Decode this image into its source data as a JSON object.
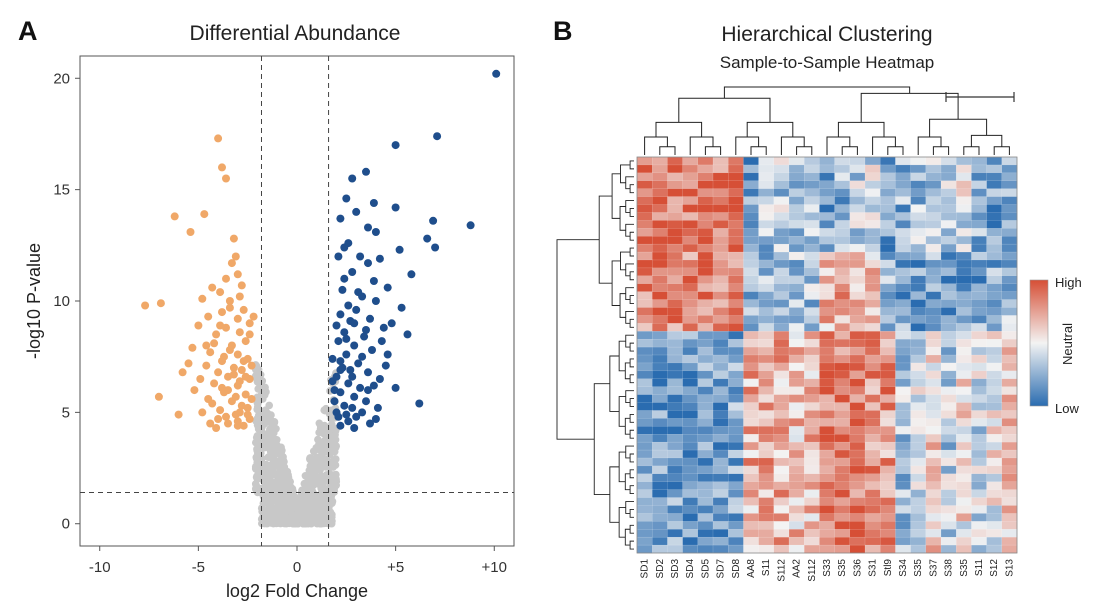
{
  "figure": {
    "panel_a_letter": "A",
    "panel_b_letter": "B"
  },
  "chart_data": [
    {
      "type": "scatter",
      "title": "Differential Abundance",
      "xlabel": "log2 Fold Change",
      "ylabel": "-log10 P-value",
      "xlim": [
        -11,
        11
      ],
      "ylim": [
        -1,
        21
      ],
      "xticks": [
        -10,
        -5,
        0,
        5,
        10
      ],
      "xtick_labels": [
        "-10",
        "-5",
        "0",
        "+5",
        "+10"
      ],
      "yticks": [
        0,
        5,
        10,
        15,
        20
      ],
      "ytick_labels": [
        "0",
        "5",
        "10",
        "15",
        "20"
      ],
      "thresholds": {
        "fold_change_low": -1.8,
        "fold_change_high": 1.6,
        "pvalue": 1.4
      },
      "grid": false,
      "colors": {
        "down": "#f0a868",
        "up": "#1f4e8c",
        "ns": "#c8c8c8"
      },
      "series": [
        {
          "name": "down",
          "points": [
            [
              -4.0,
              17.3
            ],
            [
              -3.8,
              16.0
            ],
            [
              -3.6,
              15.5
            ],
            [
              -6.2,
              13.8
            ],
            [
              -4.7,
              13.9
            ],
            [
              -5.4,
              13.1
            ],
            [
              -3.2,
              12.8
            ],
            [
              -3.1,
              12.0
            ],
            [
              -3.3,
              11.7
            ],
            [
              -3.0,
              11.2
            ],
            [
              -3.6,
              11.0
            ],
            [
              -4.3,
              10.6
            ],
            [
              -3.9,
              10.4
            ],
            [
              -2.9,
              10.2
            ],
            [
              -4.8,
              10.1
            ],
            [
              -3.4,
              10.0
            ],
            [
              -7.7,
              9.8
            ],
            [
              -6.9,
              9.9
            ],
            [
              -2.7,
              9.6
            ],
            [
              -3.8,
              9.5
            ],
            [
              -4.5,
              9.3
            ],
            [
              -3.0,
              9.2
            ],
            [
              -2.4,
              9.0
            ],
            [
              -5.0,
              8.9
            ],
            [
              -3.6,
              8.8
            ],
            [
              -2.9,
              8.6
            ],
            [
              -4.1,
              8.5
            ],
            [
              -5.3,
              7.9
            ],
            [
              -2.6,
              8.2
            ],
            [
              -3.3,
              8.0
            ],
            [
              -4.4,
              7.7
            ],
            [
              -3.0,
              7.6
            ],
            [
              -2.5,
              7.4
            ],
            [
              -3.8,
              7.3
            ],
            [
              -4.6,
              7.1
            ],
            [
              -3.2,
              7.0
            ],
            [
              -2.8,
              6.9
            ],
            [
              -4.0,
              6.8
            ],
            [
              -5.8,
              6.8
            ],
            [
              -3.5,
              6.6
            ],
            [
              -2.4,
              6.5
            ],
            [
              -4.2,
              6.3
            ],
            [
              -3.0,
              6.2
            ],
            [
              -5.2,
              6.0
            ],
            [
              -3.7,
              5.9
            ],
            [
              -2.6,
              5.8
            ],
            [
              -4.5,
              5.6
            ],
            [
              -3.3,
              5.5
            ],
            [
              -7.0,
              5.7
            ],
            [
              -2.8,
              5.3
            ],
            [
              -3.9,
              5.1
            ],
            [
              -4.8,
              5.0
            ],
            [
              -3.1,
              4.9
            ],
            [
              -2.4,
              4.7
            ],
            [
              -6.0,
              4.9
            ],
            [
              -3.5,
              4.5
            ],
            [
              -2.7,
              4.4
            ],
            [
              -4.1,
              4.3
            ],
            [
              -3.0,
              4.6
            ],
            [
              -2.5,
              4.9
            ],
            [
              -3.8,
              6.1
            ],
            [
              -2.3,
              7.1
            ],
            [
              -3.4,
              7.8
            ],
            [
              -2.9,
              5.0
            ],
            [
              -4.3,
              5.4
            ],
            [
              -2.3,
              5.6
            ],
            [
              -3.6,
              4.8
            ],
            [
              -4.9,
              6.5
            ],
            [
              -2.6,
              6.6
            ],
            [
              -4.0,
              4.7
            ],
            [
              -3.2,
              6.7
            ],
            [
              -2.4,
              8.5
            ],
            [
              -3.7,
              7.5
            ],
            [
              -4.2,
              8.1
            ],
            [
              -3.1,
              5.7
            ],
            [
              -2.7,
              7.3
            ],
            [
              -5.5,
              7.2
            ],
            [
              -3.9,
              8.9
            ],
            [
              -2.2,
              9.3
            ],
            [
              -4.6,
              8.0
            ],
            [
              -3.4,
              9.7
            ],
            [
              -2.8,
              10.7
            ],
            [
              -3.5,
              6.0
            ],
            [
              -2.5,
              5.2
            ],
            [
              -3.0,
              4.4
            ],
            [
              -4.4,
              4.5
            ],
            [
              -2.9,
              6.4
            ]
          ]
        },
        {
          "name": "up",
          "points": [
            [
              10.1,
              20.2
            ],
            [
              7.1,
              17.4
            ],
            [
              5.0,
              17.0
            ],
            [
              3.5,
              15.8
            ],
            [
              2.8,
              15.5
            ],
            [
              2.5,
              14.6
            ],
            [
              3.9,
              14.4
            ],
            [
              5.0,
              14.2
            ],
            [
              3.0,
              14.0
            ],
            [
              2.2,
              13.7
            ],
            [
              6.9,
              13.6
            ],
            [
              8.8,
              13.4
            ],
            [
              3.6,
              13.3
            ],
            [
              4.0,
              13.1
            ],
            [
              2.6,
              12.6
            ],
            [
              6.6,
              12.8
            ],
            [
              5.2,
              12.3
            ],
            [
              2.4,
              12.4
            ],
            [
              3.2,
              12.0
            ],
            [
              7.0,
              12.4
            ],
            [
              4.2,
              11.9
            ],
            [
              2.1,
              12.0
            ],
            [
              3.6,
              11.7
            ],
            [
              5.8,
              11.2
            ],
            [
              2.8,
              11.3
            ],
            [
              3.9,
              10.9
            ],
            [
              4.6,
              10.6
            ],
            [
              2.3,
              10.5
            ],
            [
              3.3,
              10.2
            ],
            [
              4.0,
              10.0
            ],
            [
              2.6,
              9.8
            ],
            [
              3.0,
              9.6
            ],
            [
              5.3,
              9.7
            ],
            [
              2.2,
              9.4
            ],
            [
              3.7,
              9.2
            ],
            [
              2.9,
              9.0
            ],
            [
              4.4,
              8.8
            ],
            [
              2.4,
              8.6
            ],
            [
              3.4,
              8.4
            ],
            [
              5.6,
              8.5
            ],
            [
              2.1,
              8.2
            ],
            [
              2.9,
              8.0
            ],
            [
              3.8,
              7.8
            ],
            [
              2.5,
              7.6
            ],
            [
              4.6,
              7.6
            ],
            [
              2.2,
              7.3
            ],
            [
              3.1,
              7.2
            ],
            [
              2.7,
              6.9
            ],
            [
              3.6,
              6.8
            ],
            [
              2.0,
              6.6
            ],
            [
              4.2,
              6.5
            ],
            [
              2.6,
              6.3
            ],
            [
              3.2,
              6.1
            ],
            [
              2.2,
              5.9
            ],
            [
              5.0,
              6.1
            ],
            [
              2.9,
              5.7
            ],
            [
              3.5,
              5.5
            ],
            [
              2.4,
              5.3
            ],
            [
              4.1,
              5.2
            ],
            [
              2.0,
              5.0
            ],
            [
              3.0,
              4.8
            ],
            [
              2.6,
              4.6
            ],
            [
              3.7,
              4.5
            ],
            [
              2.2,
              4.4
            ],
            [
              6.2,
              5.4
            ],
            [
              2.3,
              7.0
            ],
            [
              1.9,
              6.0
            ],
            [
              2.8,
              6.6
            ],
            [
              3.3,
              5.0
            ],
            [
              1.8,
              7.4
            ],
            [
              2.5,
              8.3
            ],
            [
              3.9,
              6.2
            ],
            [
              2.1,
              4.8
            ],
            [
              4.5,
              7.1
            ],
            [
              2.7,
              9.1
            ],
            [
              3.5,
              8.7
            ],
            [
              1.9,
              5.5
            ],
            [
              3.1,
              10.4
            ],
            [
              4.8,
              9.0
            ],
            [
              2.4,
              11.0
            ],
            [
              3.6,
              6.0
            ],
            [
              2.0,
              8.9
            ],
            [
              4.0,
              4.7
            ],
            [
              2.8,
              5.2
            ],
            [
              3.3,
              7.5
            ],
            [
              1.8,
              6.4
            ],
            [
              2.5,
              4.9
            ],
            [
              4.3,
              8.2
            ],
            [
              2.9,
              4.3
            ],
            [
              2.2,
              6.9
            ]
          ]
        }
      ]
    },
    {
      "type": "heatmap",
      "title": "Hierarchical Clustering",
      "subtitle": "Sample-to-Sample Heatmap",
      "columns": [
        "SD1",
        "SD2",
        "SD3",
        "SD4",
        "SD5",
        "SD7",
        "SD8",
        "AA8",
        "S11",
        "S112",
        "AA2",
        "S112",
        "S33",
        "S35",
        "S36",
        "S31",
        "Stl9",
        "S34",
        "S35",
        "S37",
        "S38",
        "S35",
        "S11",
        "S12",
        "S13"
      ],
      "n_rows": 50,
      "value_range": [
        -1,
        1
      ],
      "legend": {
        "high": "High",
        "mid": "Neutral",
        "low": "Low"
      },
      "colors": {
        "high": "#d64f36",
        "mid": "#f3f3f3",
        "low": "#2a6cb0"
      },
      "block_pattern": {
        "row_groups": [
          {
            "rows": 12,
            "levels": [
              0.75,
              0.8,
              0.8,
              0.7,
              0.85,
              0.75,
              0.8,
              -0.7,
              -0.4,
              -0.3,
              -0.4,
              -0.3,
              -0.6,
              -0.5,
              -0.3,
              -0.2,
              -0.6,
              -0.5,
              -0.4,
              -0.3,
              -0.2,
              -0.1,
              -0.5,
              -0.6,
              -0.6
            ]
          },
          {
            "rows": 10,
            "levels": [
              0.7,
              0.7,
              0.6,
              0.65,
              0.7,
              0.7,
              0.6,
              -0.5,
              -0.5,
              -0.3,
              -0.4,
              -0.4,
              0.3,
              0.4,
              0.3,
              0.2,
              -0.4,
              -0.6,
              -0.7,
              -0.6,
              -0.7,
              -0.7,
              -0.6,
              -0.5,
              -0.4
            ]
          },
          {
            "rows": 28,
            "levels": [
              -0.7,
              -0.7,
              -0.65,
              -0.7,
              -0.6,
              -0.7,
              -0.6,
              0.4,
              0.45,
              0.4,
              0.3,
              0.35,
              0.7,
              0.75,
              0.8,
              0.6,
              0.55,
              -0.4,
              -0.2,
              0.2,
              -0.3,
              0.1,
              -0.2,
              0.0,
              0.2
            ]
          }
        ]
      }
    }
  ]
}
